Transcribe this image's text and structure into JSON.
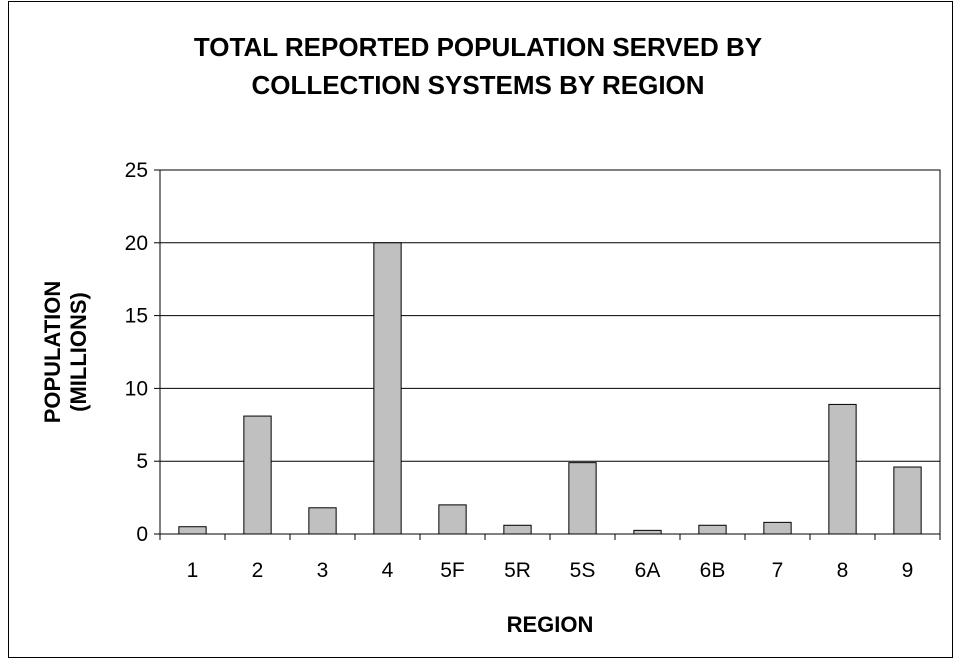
{
  "chart_data": {
    "type": "bar",
    "title": "TOTAL REPORTED POPULATION SERVED BY COLLECTION SYSTEMS BY REGION",
    "title_lines": [
      "TOTAL REPORTED POPULATION SERVED BY",
      "COLLECTION SYSTEMS BY REGION"
    ],
    "xlabel": "REGION",
    "ylabel": "POPULATION (MILLIONS)",
    "ylabel_lines": [
      "POPULATION",
      "(MILLIONS)"
    ],
    "categories": [
      "1",
      "2",
      "3",
      "4",
      "5F",
      "5R",
      "5S",
      "6A",
      "6B",
      "7",
      "8",
      "9"
    ],
    "values": [
      0.5,
      8.1,
      1.8,
      20.0,
      2.0,
      0.6,
      4.9,
      0.25,
      0.6,
      0.8,
      8.9,
      4.6
    ],
    "ylim": [
      0,
      25
    ],
    "yticks": [
      0,
      5,
      10,
      15,
      20,
      25
    ],
    "grid": true,
    "legend": "none",
    "bar_color": "#c0c0c0"
  }
}
